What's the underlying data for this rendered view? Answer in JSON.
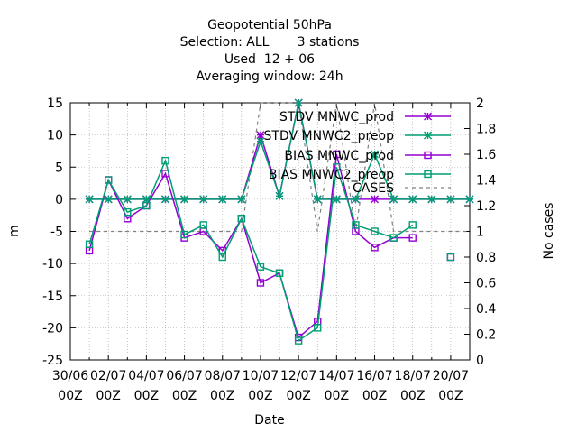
{
  "chart_data": {
    "type": "line",
    "title_lines": [
      "Geopotential 50hPa",
      "Selection: ALL       3 stations",
      "Used  12 + 06",
      "Averaging window: 24h"
    ],
    "xlabel": "Date",
    "ylabel": "m",
    "y2label": "No cases",
    "ylim": [
      -25,
      15
    ],
    "y2lim": [
      0,
      2
    ],
    "xlim": [
      0,
      21
    ],
    "x_ticks": [
      {
        "x": 0,
        "line1": "30/06",
        "line2": "00Z"
      },
      {
        "x": 2,
        "line1": "02/07",
        "line2": "00Z"
      },
      {
        "x": 4,
        "line1": "04/07",
        "line2": "00Z"
      },
      {
        "x": 6,
        "line1": "06/07",
        "line2": "00Z"
      },
      {
        "x": 8,
        "line1": "08/07",
        "line2": "00Z"
      },
      {
        "x": 10,
        "line1": "10/07",
        "line2": "00Z"
      },
      {
        "x": 12,
        "line1": "12/07",
        "line2": "00Z"
      },
      {
        "x": 14,
        "line1": "14/07",
        "line2": "00Z"
      },
      {
        "x": 16,
        "line1": "16/07",
        "line2": "00Z"
      },
      {
        "x": 18,
        "line1": "18/07",
        "line2": "00Z"
      },
      {
        "x": 20,
        "line1": "20/07",
        "line2": "00Z"
      }
    ],
    "y_ticks": [
      "-25",
      "-20",
      "-15",
      "-10",
      "-5",
      "0",
      "5",
      "10",
      "15"
    ],
    "y2_ticks": [
      "0",
      "0.2",
      "0.4",
      "0.6",
      "0.8",
      "1",
      "1.2",
      "1.4",
      "1.6",
      "1.8",
      "2"
    ],
    "grid": true,
    "legend_position": "top-right",
    "x": [
      1,
      2,
      3,
      4,
      5,
      6,
      7,
      8,
      9,
      10,
      11,
      12,
      13,
      14,
      15,
      16,
      17,
      18,
      19,
      20,
      21
    ],
    "series": [
      {
        "name": "STDV MNWC_prod",
        "color": "#9400d3",
        "marker": "star",
        "axis": "y1",
        "values": [
          0,
          0,
          0,
          0,
          0,
          0,
          0,
          0,
          0,
          10,
          0.5,
          15,
          0,
          0,
          0,
          0,
          0,
          0,
          0,
          0,
          0
        ]
      },
      {
        "name": "STDV MNWC2_preop",
        "color": "#009e73",
        "marker": "star",
        "axis": "y1",
        "values": [
          0,
          0,
          0,
          0,
          0,
          0,
          0,
          0,
          0,
          9,
          0.5,
          15,
          0,
          0,
          0,
          7,
          0,
          0,
          0,
          0,
          0
        ]
      },
      {
        "name": "BIAS MNWC_prod",
        "color": "#9400d3",
        "marker": "square",
        "axis": "y1",
        "values": [
          -8,
          3,
          -3,
          -1,
          4,
          -6,
          -5,
          -8,
          -3,
          -13,
          -11.5,
          -21.5,
          -19,
          7,
          -5,
          -7.5,
          -6,
          -6,
          null,
          -9,
          null
        ]
      },
      {
        "name": "BIAS MNWC2_preop",
        "color": "#009e73",
        "marker": "square",
        "axis": "y1",
        "values": [
          -7,
          3,
          -2,
          -1,
          6,
          -5.5,
          -4,
          -9,
          -3,
          -10.5,
          -11.5,
          -22,
          -20,
          5,
          -4,
          -5,
          -6,
          -4,
          null,
          -9,
          null
        ]
      },
      {
        "name": "CASES",
        "color": "#808080",
        "marker": "none",
        "axis": "y2",
        "dash": true,
        "values": [
          1,
          1,
          1,
          1,
          1,
          1,
          1,
          1,
          1,
          2,
          2,
          2,
          1,
          2,
          1,
          2,
          1,
          1,
          1,
          1,
          1
        ]
      }
    ]
  }
}
